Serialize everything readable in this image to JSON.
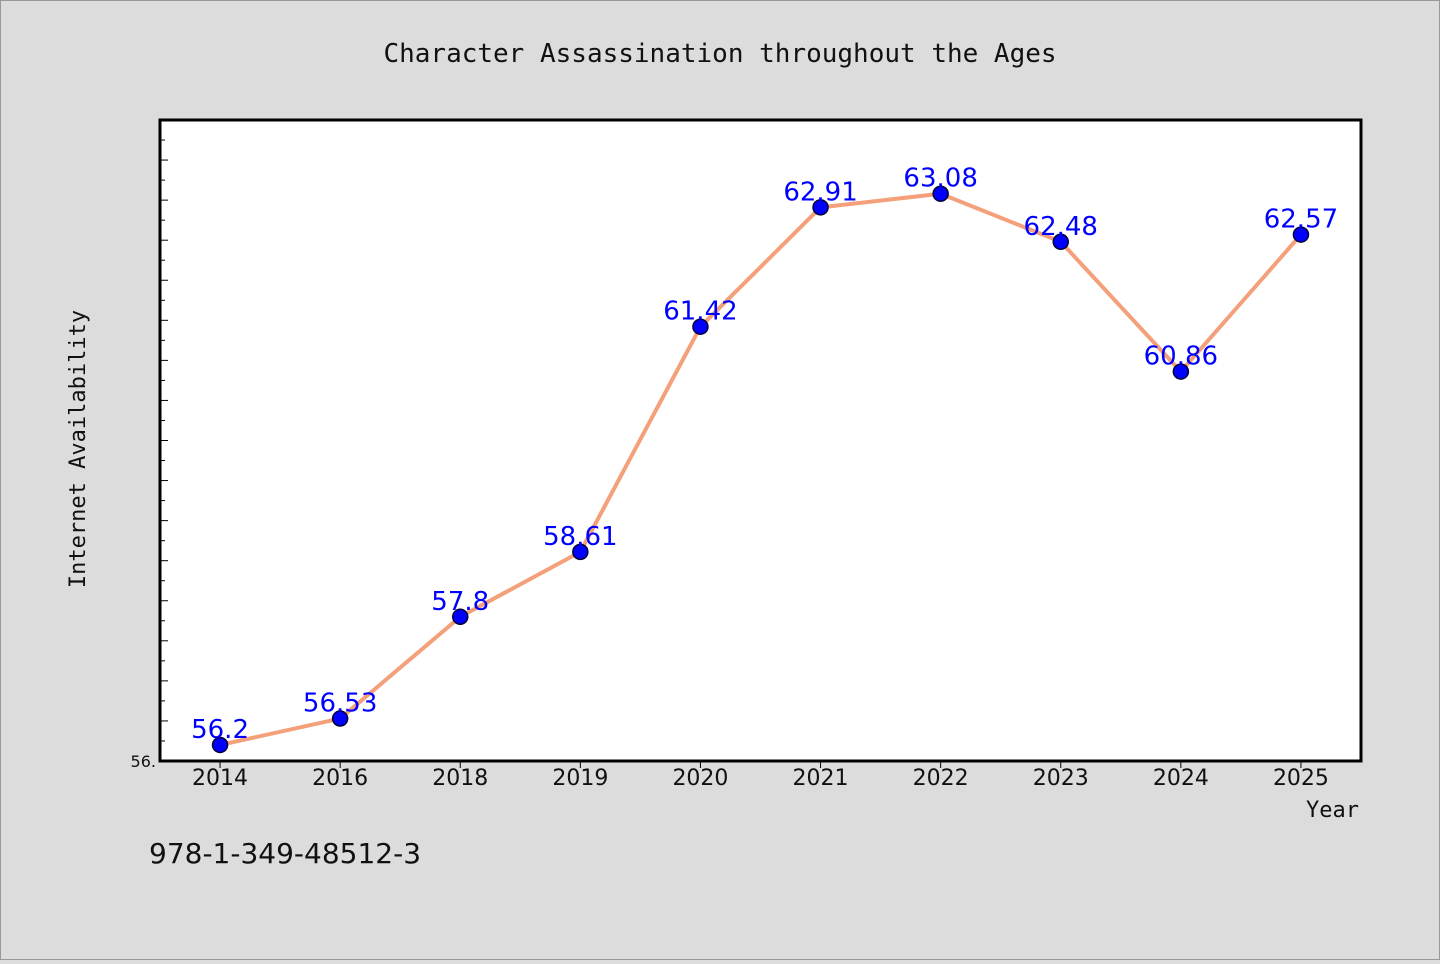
{
  "chart_data": {
    "type": "line",
    "title": "Character Assassination throughout the Ages",
    "xlabel": "Year",
    "ylabel": "Internet Availability",
    "categories": [
      "2014",
      "2016",
      "2018",
      "2019",
      "2020",
      "2021",
      "2022",
      "2023",
      "2024",
      "2025"
    ],
    "series": [
      {
        "values": [
          56.2,
          56.53,
          57.8,
          58.61,
          61.42,
          62.91,
          63.08,
          62.48,
          60.86,
          62.57
        ],
        "data_labels": [
          "56.2",
          "56.53",
          "57.8",
          "58.61",
          "61.42",
          "62.91",
          "63.08",
          "62.48",
          "60.86",
          "62.57"
        ]
      }
    ],
    "y_tick_labels": [
      "56."
    ],
    "ylim": [
      56.0,
      64.0
    ],
    "grid": false,
    "legend": "none",
    "colors": {
      "line": "#f4a07a",
      "marker": "#0000ff",
      "marker_edge": "#000033",
      "data_label": "#0000ff",
      "plot_background": "#ffffff",
      "figure_background": "#dcdcdc"
    }
  },
  "footer": {
    "isbn": "978-1-349-48512-3"
  }
}
